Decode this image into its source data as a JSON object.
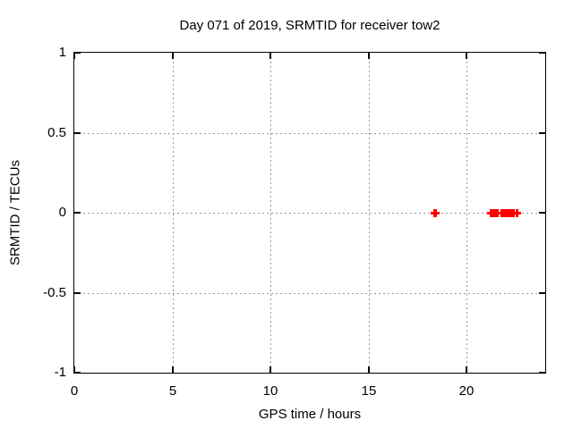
{
  "window": {
    "background": "#ffffff"
  },
  "chart_data": {
    "type": "scatter",
    "title": "Day 071 of 2019, SRMTID for receiver tow2",
    "xlabel": "GPS time / hours",
    "ylabel": "SRMTID / TECUs",
    "xlim": [
      0,
      24
    ],
    "ylim": [
      -1,
      1
    ],
    "xticks": [
      0,
      5,
      10,
      15,
      20
    ],
    "xtick_labels": [
      "0",
      "5",
      "10",
      "15",
      "20"
    ],
    "yticks": [
      1,
      0.5,
      0,
      -0.5,
      -1
    ],
    "ytick_labels": [
      "1",
      "0.5",
      "0",
      "-0.5",
      "-1"
    ],
    "grid": true,
    "grid_style": "dashed",
    "legend_position": "none",
    "marker": "plus",
    "colors": {
      "marker": "#ff0000",
      "grid": "#999999",
      "axis": "#000000",
      "text": "#000000"
    },
    "series": [
      {
        "name": "SRMTID",
        "x": [
          18.38,
          18.41,
          21.25,
          21.29,
          21.33,
          21.37,
          21.41,
          21.45,
          21.5,
          21.55,
          21.8,
          21.84,
          21.88,
          21.92,
          21.96,
          22.0,
          22.04,
          22.08,
          22.12,
          22.16,
          22.2,
          22.24,
          22.28,
          22.32,
          22.36,
          22.57
        ],
        "y": [
          0,
          0,
          0,
          0,
          0,
          0,
          0,
          0,
          0,
          0,
          0,
          0,
          0,
          0,
          0,
          0,
          0,
          0,
          0,
          0,
          0,
          0,
          0,
          0,
          0,
          0
        ]
      }
    ]
  }
}
